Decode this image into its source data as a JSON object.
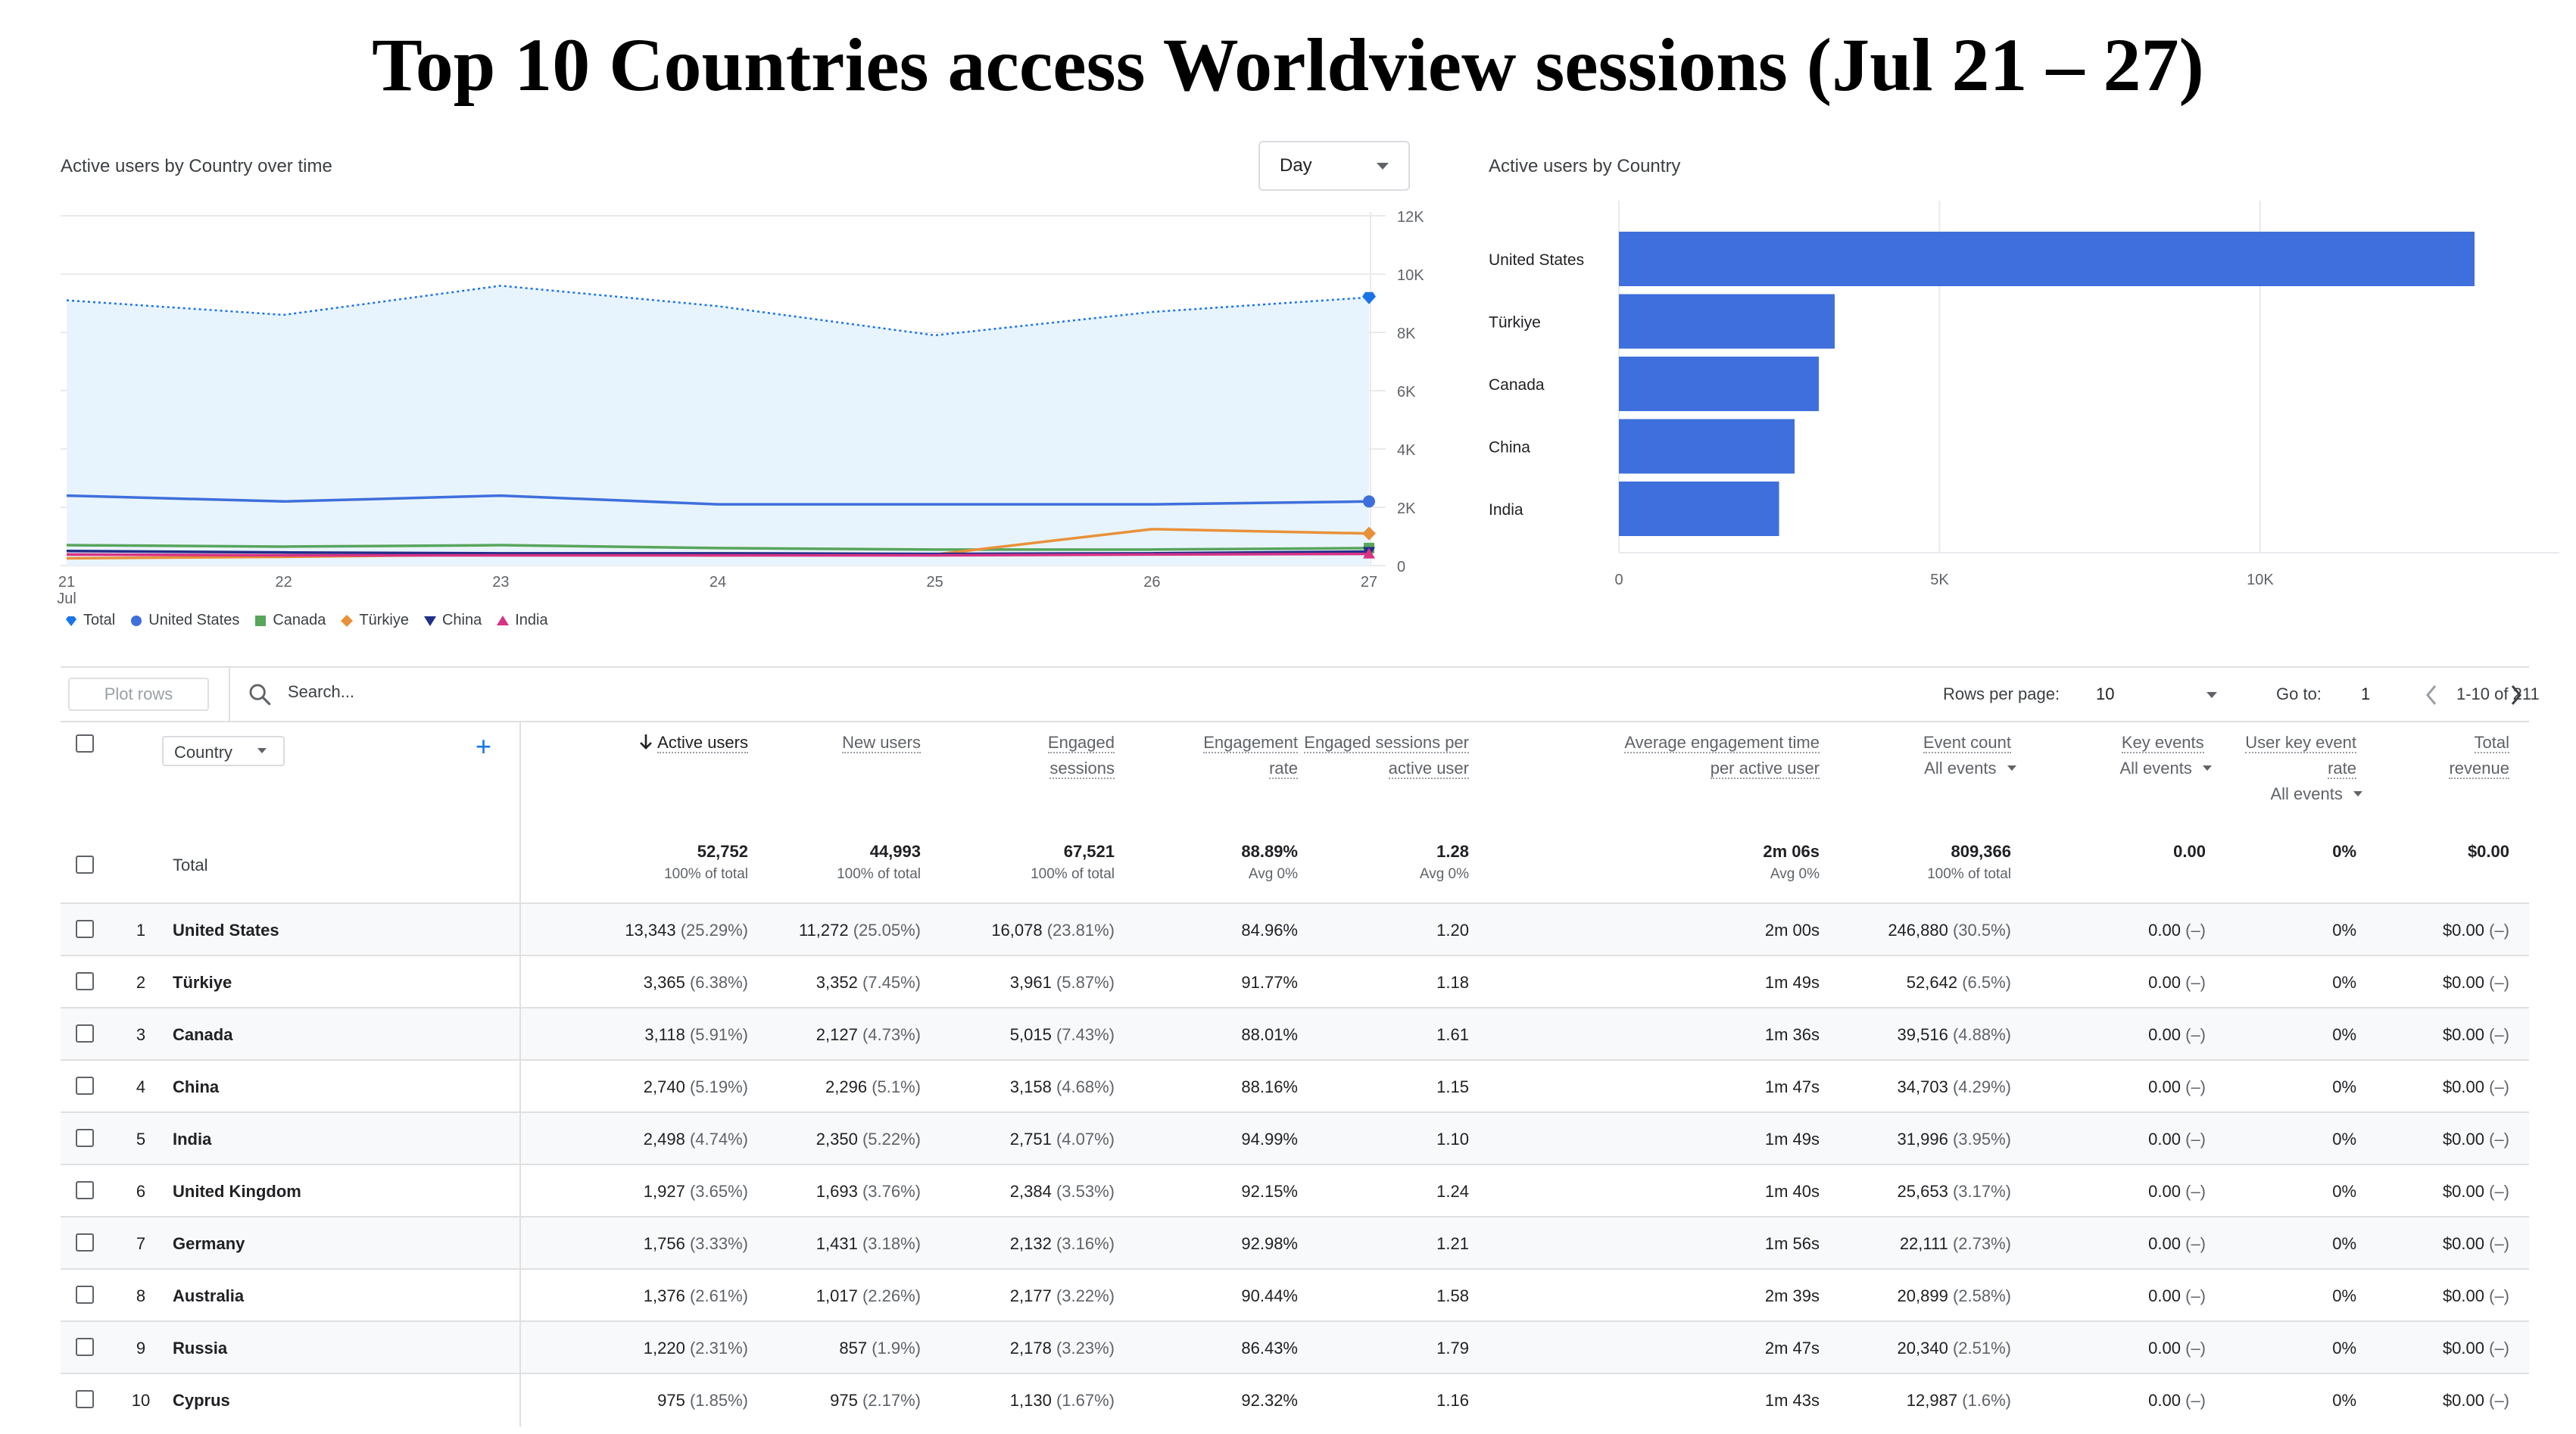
{
  "title": "Top 10 Countries access Worldview sessions (Jul 21 – 27)",
  "line_card": {
    "title": "Active users by Country over time",
    "granularity": "Day",
    "y_ticks": [
      "12K",
      "10K",
      "8K",
      "6K",
      "4K",
      "2K",
      "0"
    ],
    "x_ticks": [
      "21",
      "22",
      "23",
      "24",
      "25",
      "26",
      "27"
    ],
    "x_sub": "Jul",
    "legend": [
      "Total",
      "United States",
      "Canada",
      "Türkiye",
      "China",
      "India"
    ]
  },
  "bar_card": {
    "title": "Active users by Country",
    "x_ticks": [
      "0",
      "5K",
      "10K"
    ]
  },
  "chart_data": [
    {
      "type": "line",
      "title": "Active users by Country over time",
      "x": [
        "21 Jul",
        "22",
        "23",
        "24",
        "25",
        "26",
        "27"
      ],
      "ylim": [
        0,
        12000
      ],
      "grid": true,
      "legend": "bottom",
      "series": [
        {
          "name": "Total",
          "color": "#1a73e8",
          "values": [
            9100,
            8600,
            9600,
            8900,
            7900,
            8700,
            9200
          ]
        },
        {
          "name": "United States",
          "color": "#3f6fdc",
          "values": [
            2400,
            2200,
            2400,
            2100,
            2100,
            2100,
            2200
          ]
        },
        {
          "name": "Canada",
          "color": "#58a55c",
          "values": [
            700,
            650,
            700,
            600,
            550,
            550,
            600
          ]
        },
        {
          "name": "Türkiye",
          "color": "#e8913a",
          "values": [
            250,
            300,
            380,
            350,
            380,
            1250,
            1100
          ]
        },
        {
          "name": "China",
          "color": "#1f2f8a",
          "values": [
            500,
            450,
            420,
            420,
            400,
            420,
            480
          ]
        },
        {
          "name": "India",
          "color": "#d63384",
          "values": [
            380,
            350,
            350,
            350,
            350,
            380,
            400
          ]
        }
      ]
    },
    {
      "type": "bar",
      "orientation": "horizontal",
      "title": "Active users by Country",
      "categories": [
        "United States",
        "Türkiye",
        "Canada",
        "China",
        "India"
      ],
      "values": [
        13343,
        3365,
        3118,
        2740,
        2498
      ],
      "xlim": [
        0,
        14000
      ],
      "color": "#3f6fdc"
    }
  ],
  "toolbar": {
    "plot_rows": "Plot rows",
    "search_placeholder": "Search...",
    "rows_per_page_label": "Rows per page:",
    "rows_per_page": "10",
    "goto_label": "Go to:",
    "goto_value": "1",
    "range": "1-10 of 211"
  },
  "table": {
    "dimension": "Country",
    "headers": {
      "active_users": "Active users",
      "new_users": "New users",
      "engaged_sessions_1": "Engaged",
      "engaged_sessions_2": "sessions",
      "engagement_rate_1": "Engagement",
      "engagement_rate_2": "rate",
      "esau_1": "Engaged sessions per",
      "esau_2": "active user",
      "aet_1": "Average engagement time",
      "aet_2": "per active user",
      "event_count": "Event count",
      "event_count_sub": "All events",
      "key_events": "Key events",
      "key_events_sub": "All events",
      "ukr_1": "User key event",
      "ukr_2": "rate",
      "ukr_sub": "All events",
      "revenue_1": "Total",
      "revenue_2": "revenue"
    },
    "totals": {
      "label": "Total",
      "values": [
        "52,752",
        "44,993",
        "67,521",
        "88.89%",
        "1.28",
        "2m 06s",
        "809,366",
        "0.00",
        "0%",
        "$0.00"
      ],
      "subs": [
        "100% of total",
        "100% of total",
        "100% of total",
        "Avg 0%",
        "Avg 0%",
        "Avg 0%",
        "100% of total",
        "",
        "",
        ""
      ]
    },
    "rows": [
      {
        "rank": "1",
        "country": "United States",
        "cells": [
          [
            "13,343",
            "(25.29%)"
          ],
          [
            "11,272",
            "(25.05%)"
          ],
          [
            "16,078",
            "(23.81%)"
          ],
          [
            "84.96%",
            ""
          ],
          [
            "1.20",
            ""
          ],
          [
            "2m 00s",
            ""
          ],
          [
            "246,880",
            "(30.5%)"
          ],
          [
            "0.00",
            "(–)"
          ],
          [
            "0%",
            ""
          ],
          [
            "$0.00",
            "(–)"
          ]
        ]
      },
      {
        "rank": "2",
        "country": "Türkiye",
        "cells": [
          [
            "3,365",
            "(6.38%)"
          ],
          [
            "3,352",
            "(7.45%)"
          ],
          [
            "3,961",
            "(5.87%)"
          ],
          [
            "91.77%",
            ""
          ],
          [
            "1.18",
            ""
          ],
          [
            "1m 49s",
            ""
          ],
          [
            "52,642",
            "(6.5%)"
          ],
          [
            "0.00",
            "(–)"
          ],
          [
            "0%",
            ""
          ],
          [
            "$0.00",
            "(–)"
          ]
        ]
      },
      {
        "rank": "3",
        "country": "Canada",
        "cells": [
          [
            "3,118",
            "(5.91%)"
          ],
          [
            "2,127",
            "(4.73%)"
          ],
          [
            "5,015",
            "(7.43%)"
          ],
          [
            "88.01%",
            ""
          ],
          [
            "1.61",
            ""
          ],
          [
            "1m 36s",
            ""
          ],
          [
            "39,516",
            "(4.88%)"
          ],
          [
            "0.00",
            "(–)"
          ],
          [
            "0%",
            ""
          ],
          [
            "$0.00",
            "(–)"
          ]
        ]
      },
      {
        "rank": "4",
        "country": "China",
        "cells": [
          [
            "2,740",
            "(5.19%)"
          ],
          [
            "2,296",
            "(5.1%)"
          ],
          [
            "3,158",
            "(4.68%)"
          ],
          [
            "88.16%",
            ""
          ],
          [
            "1.15",
            ""
          ],
          [
            "1m 47s",
            ""
          ],
          [
            "34,703",
            "(4.29%)"
          ],
          [
            "0.00",
            "(–)"
          ],
          [
            "0%",
            ""
          ],
          [
            "$0.00",
            "(–)"
          ]
        ]
      },
      {
        "rank": "5",
        "country": "India",
        "cells": [
          [
            "2,498",
            "(4.74%)"
          ],
          [
            "2,350",
            "(5.22%)"
          ],
          [
            "2,751",
            "(4.07%)"
          ],
          [
            "94.99%",
            ""
          ],
          [
            "1.10",
            ""
          ],
          [
            "1m 49s",
            ""
          ],
          [
            "31,996",
            "(3.95%)"
          ],
          [
            "0.00",
            "(–)"
          ],
          [
            "0%",
            ""
          ],
          [
            "$0.00",
            "(–)"
          ]
        ]
      },
      {
        "rank": "6",
        "country": "United Kingdom",
        "cells": [
          [
            "1,927",
            "(3.65%)"
          ],
          [
            "1,693",
            "(3.76%)"
          ],
          [
            "2,384",
            "(3.53%)"
          ],
          [
            "92.15%",
            ""
          ],
          [
            "1.24",
            ""
          ],
          [
            "1m 40s",
            ""
          ],
          [
            "25,653",
            "(3.17%)"
          ],
          [
            "0.00",
            "(–)"
          ],
          [
            "0%",
            ""
          ],
          [
            "$0.00",
            "(–)"
          ]
        ]
      },
      {
        "rank": "7",
        "country": "Germany",
        "cells": [
          [
            "1,756",
            "(3.33%)"
          ],
          [
            "1,431",
            "(3.18%)"
          ],
          [
            "2,132",
            "(3.16%)"
          ],
          [
            "92.98%",
            ""
          ],
          [
            "1.21",
            ""
          ],
          [
            "1m 56s",
            ""
          ],
          [
            "22,111",
            "(2.73%)"
          ],
          [
            "0.00",
            "(–)"
          ],
          [
            "0%",
            ""
          ],
          [
            "$0.00",
            "(–)"
          ]
        ]
      },
      {
        "rank": "8",
        "country": "Australia",
        "cells": [
          [
            "1,376",
            "(2.61%)"
          ],
          [
            "1,017",
            "(2.26%)"
          ],
          [
            "2,177",
            "(3.22%)"
          ],
          [
            "90.44%",
            ""
          ],
          [
            "1.58",
            ""
          ],
          [
            "2m 39s",
            ""
          ],
          [
            "20,899",
            "(2.58%)"
          ],
          [
            "0.00",
            "(–)"
          ],
          [
            "0%",
            ""
          ],
          [
            "$0.00",
            "(–)"
          ]
        ]
      },
      {
        "rank": "9",
        "country": "Russia",
        "cells": [
          [
            "1,220",
            "(2.31%)"
          ],
          [
            "857",
            "(1.9%)"
          ],
          [
            "2,178",
            "(3.23%)"
          ],
          [
            "86.43%",
            ""
          ],
          [
            "1.79",
            ""
          ],
          [
            "2m 47s",
            ""
          ],
          [
            "20,340",
            "(2.51%)"
          ],
          [
            "0.00",
            "(–)"
          ],
          [
            "0%",
            ""
          ],
          [
            "$0.00",
            "(–)"
          ]
        ]
      },
      {
        "rank": "10",
        "country": "Cyprus",
        "cells": [
          [
            "975",
            "(1.85%)"
          ],
          [
            "975",
            "(2.17%)"
          ],
          [
            "1,130",
            "(1.67%)"
          ],
          [
            "92.32%",
            ""
          ],
          [
            "1.16",
            ""
          ],
          [
            "1m 43s",
            ""
          ],
          [
            "12,987",
            "(1.6%)"
          ],
          [
            "0.00",
            "(–)"
          ],
          [
            "0%",
            ""
          ],
          [
            "$0.00",
            "(–)"
          ]
        ]
      }
    ]
  }
}
